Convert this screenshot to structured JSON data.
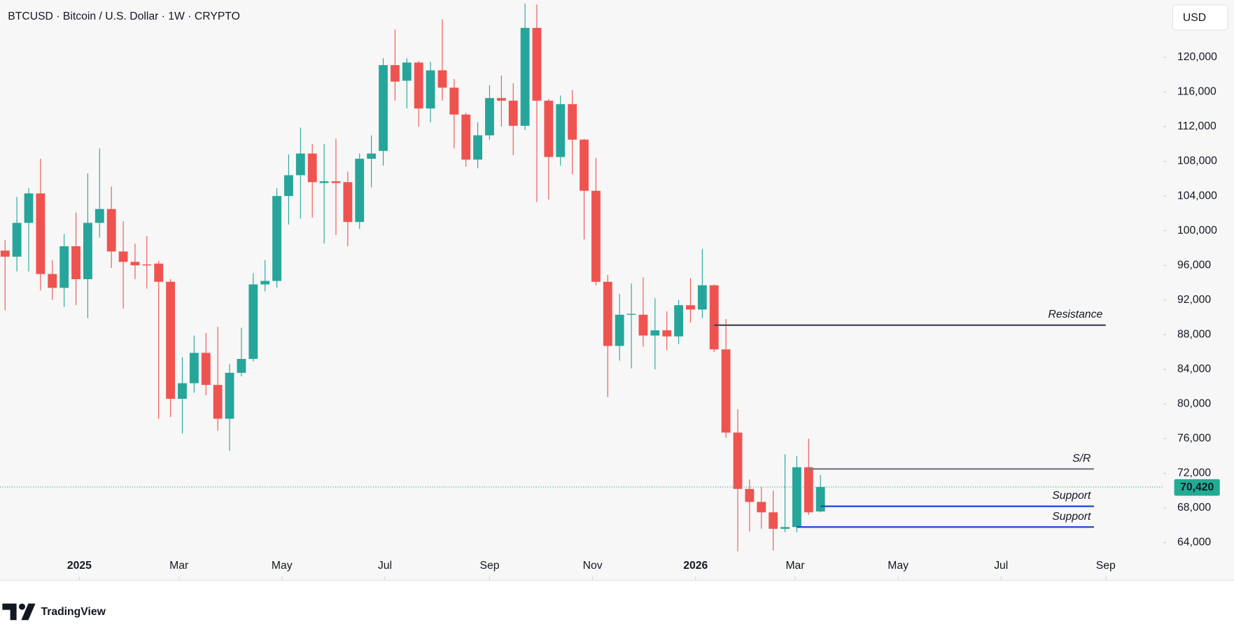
{
  "chart_data": {
    "type": "candlestick",
    "title": "BTCUSD · Bitcoin / U.S. Dollar · 1W · CRYPTO",
    "x": [
      "2024-11-18",
      "2024-11-25",
      "2024-12-02",
      "2024-12-09",
      "2024-12-16",
      "2024-12-23",
      "2024-12-30",
      "2025-01-06",
      "2025-01-13",
      "2025-01-20",
      "2025-01-27",
      "2025-02-03",
      "2025-02-10",
      "2025-02-17",
      "2025-02-24",
      "2025-03-03",
      "2025-03-10",
      "2025-03-17",
      "2025-03-24",
      "2025-03-31",
      "2025-04-07",
      "2025-04-14",
      "2025-04-21",
      "2025-04-28",
      "2025-05-05",
      "2025-05-12",
      "2025-05-19",
      "2025-05-26",
      "2025-06-02",
      "2025-06-09",
      "2025-06-16",
      "2025-06-23",
      "2025-06-30",
      "2025-07-07",
      "2025-07-14",
      "2025-07-21",
      "2025-07-28",
      "2025-08-04",
      "2025-08-11",
      "2025-08-18",
      "2025-08-25",
      "2025-09-01",
      "2025-09-08",
      "2025-09-15",
      "2025-09-22",
      "2025-09-29",
      "2025-10-06",
      "2025-10-13",
      "2025-10-20",
      "2025-10-27",
      "2025-11-03",
      "2025-11-10",
      "2025-11-17",
      "2025-11-24",
      "2025-12-01",
      "2025-12-08",
      "2025-12-15",
      "2025-12-22",
      "2025-12-29",
      "2026-01-05",
      "2026-01-12",
      "2026-01-19",
      "2026-01-26",
      "2026-02-02",
      "2026-02-09",
      "2026-02-16",
      "2026-02-23",
      "2026-03-02",
      "2026-03-09",
      "2026-03-16"
    ],
    "open": [
      97700,
      97000,
      100900,
      104300,
      95000,
      93400,
      98200,
      94400,
      100900,
      102500,
      97600,
      96400,
      96100,
      96200,
      94100,
      80600,
      82400,
      85900,
      82200,
      78300,
      83600,
      85200,
      93800,
      94200,
      104000,
      106400,
      108900,
      105500,
      105700,
      105600,
      101000,
      108300,
      109200,
      119100,
      117300,
      119400,
      114100,
      118500,
      116500,
      113400,
      108200,
      111000,
      115300,
      115000,
      112100,
      123400,
      115000,
      108500,
      114600,
      110500,
      104600,
      94100,
      86700,
      90300,
      90300,
      87900,
      88500,
      87800,
      91400,
      90900,
      93700,
      86300,
      76700,
      70200,
      68700,
      67500,
      65600,
      65800,
      72700,
      67600
    ],
    "high": [
      98900,
      103900,
      104900,
      108300,
      96600,
      99600,
      102100,
      106600,
      109500,
      105100,
      101100,
      98500,
      99400,
      96500,
      94400,
      85400,
      87900,
      88200,
      88900,
      84600,
      88800,
      95100,
      96600,
      104900,
      108800,
      111900,
      110000,
      110000,
      110600,
      106800,
      108900,
      111000,
      119900,
      123200,
      119900,
      119600,
      119500,
      124400,
      117500,
      113600,
      112500,
      116800,
      117900,
      117000,
      126200,
      126100,
      115200,
      115600,
      116200,
      110600,
      108400,
      94900,
      92700,
      93900,
      94600,
      92200,
      90700,
      92000,
      94500,
      97900,
      93800,
      89800,
      79400,
      71300,
      70400,
      70000,
      74200,
      74000,
      76000,
      71800
    ],
    "low": [
      90800,
      95300,
      95300,
      93100,
      92000,
      91200,
      91400,
      89900,
      99200,
      95700,
      91000,
      94400,
      93300,
      78300,
      78500,
      76600,
      81300,
      81000,
      76900,
      74600,
      83200,
      84900,
      93000,
      93400,
      100700,
      101400,
      101500,
      98500,
      99500,
      98200,
      100200,
      105000,
      107500,
      115000,
      114100,
      112000,
      112500,
      115000,
      109500,
      107400,
      107200,
      110500,
      112000,
      108700,
      111600,
      103300,
      103600,
      107500,
      106500,
      99000,
      93700,
      80800,
      85000,
      84100,
      86600,
      84000,
      86200,
      86900,
      89400,
      89900,
      86000,
      76100,
      63000,
      65300,
      65600,
      63100,
      65200,
      65200,
      67200,
      67500
    ],
    "close": [
      97000,
      100900,
      104300,
      95000,
      93400,
      98200,
      94400,
      100900,
      102500,
      97600,
      96400,
      96000,
      96000,
      94100,
      80600,
      82400,
      85900,
      82200,
      78300,
      83600,
      85200,
      93800,
      94200,
      104000,
      106400,
      108900,
      105600,
      105700,
      105500,
      101000,
      108300,
      108900,
      119100,
      117200,
      119400,
      114100,
      118500,
      116500,
      113400,
      108200,
      111000,
      115300,
      115000,
      112100,
      123400,
      115000,
      108500,
      114600,
      110500,
      104600,
      94100,
      86700,
      90300,
      90400,
      87900,
      88500,
      87800,
      91400,
      90900,
      93700,
      86300,
      76700,
      70200,
      68700,
      67500,
      65600,
      65800,
      72700,
      67500,
      70420
    ],
    "up_color": "#26a69a",
    "down_color": "#ef5350",
    "xlim": [
      "2024-11-15",
      "2026-10-05"
    ],
    "xticks": [
      {
        "value": "2025-01-01",
        "label": "2025"
      },
      {
        "value": "2025-03-01",
        "label": "Mar"
      },
      {
        "value": "2025-05-01",
        "label": "May"
      },
      {
        "value": "2025-07-01",
        "label": "Jul"
      },
      {
        "value": "2025-09-01",
        "label": "Sep"
      },
      {
        "value": "2025-11-01",
        "label": "Nov"
      },
      {
        "value": "2026-01-01",
        "label": "2026"
      },
      {
        "value": "2026-03-01",
        "label": "Mar"
      },
      {
        "value": "2026-05-01",
        "label": "May"
      },
      {
        "value": "2026-07-01",
        "label": "Jul"
      },
      {
        "value": "2026-09-01",
        "label": "Sep"
      }
    ],
    "ylim": [
      59700,
      126600
    ],
    "yticks": [
      {
        "value": 64000,
        "label": "64,000"
      },
      {
        "value": 68000,
        "label": "68,000"
      },
      {
        "value": 72000,
        "label": "72,000"
      },
      {
        "value": 76000,
        "label": "76,000"
      },
      {
        "value": 80000,
        "label": "80,000"
      },
      {
        "value": 84000,
        "label": "84,000"
      },
      {
        "value": 88000,
        "label": "88,000"
      },
      {
        "value": 92000,
        "label": "92,000"
      },
      {
        "value": 96000,
        "label": "96,000"
      },
      {
        "value": 100000,
        "label": "100,000"
      },
      {
        "value": 104000,
        "label": "104,000"
      },
      {
        "value": 108000,
        "label": "108,000"
      },
      {
        "value": 112000,
        "label": "112,000"
      },
      {
        "value": 116000,
        "label": "116,000"
      },
      {
        "value": 120000,
        "label": "120,000"
      }
    ],
    "grid": false,
    "last_price": {
      "value": 70420,
      "label": "70,420",
      "color": "#22ab94"
    },
    "levels": [
      {
        "label": "Resistance",
        "value": 89100,
        "start": "2026-01-12",
        "end": "2026-09-01",
        "color": "#434651"
      },
      {
        "label": "S/R",
        "value": 72500,
        "start": "2026-03-09",
        "end": "2026-08-25",
        "color": "#787b86"
      },
      {
        "label": "Support",
        "value": 68200,
        "start": "2026-03-16",
        "end": "2026-08-25",
        "color": "#1848cc"
      },
      {
        "label": "Support",
        "value": 65800,
        "start": "2026-03-02",
        "end": "2026-08-25",
        "color": "#1848cc"
      }
    ]
  },
  "currency": "USD",
  "brand": "TradingView"
}
